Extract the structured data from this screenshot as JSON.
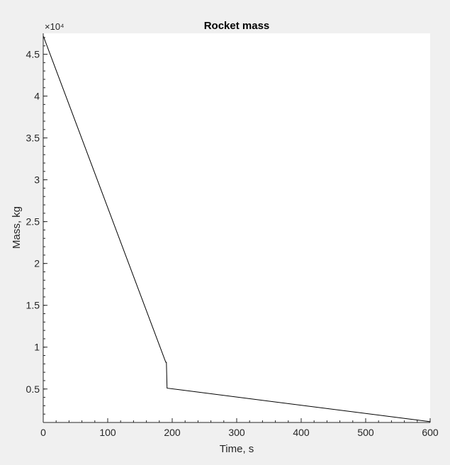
{
  "chart_data": {
    "type": "line",
    "title": "Rocket mass",
    "xlabel": "Time, s",
    "ylabel": "Mass, kg",
    "y_exponent_label": "×10⁴",
    "xlim": [
      0,
      600
    ],
    "ylim": [
      0.1,
      4.75
    ],
    "x_ticks": [
      0,
      100,
      200,
      300,
      400,
      500,
      600
    ],
    "x_tick_labels": [
      "0",
      "100",
      "200",
      "300",
      "400",
      "500",
      "600"
    ],
    "y_ticks": [
      0.5,
      1,
      1.5,
      2,
      2.5,
      3,
      3.5,
      4,
      4.5
    ],
    "y_tick_labels": [
      "0.5",
      "1",
      "1.5",
      "2",
      "2.5",
      "3",
      "3.5",
      "4",
      "4.5"
    ],
    "grid": false,
    "series": [
      {
        "x": [
          0,
          190,
          191,
          192,
          600
        ],
        "y": [
          4.72,
          0.82,
          0.82,
          0.51,
          0.11
        ],
        "color": "#000000"
      }
    ]
  }
}
